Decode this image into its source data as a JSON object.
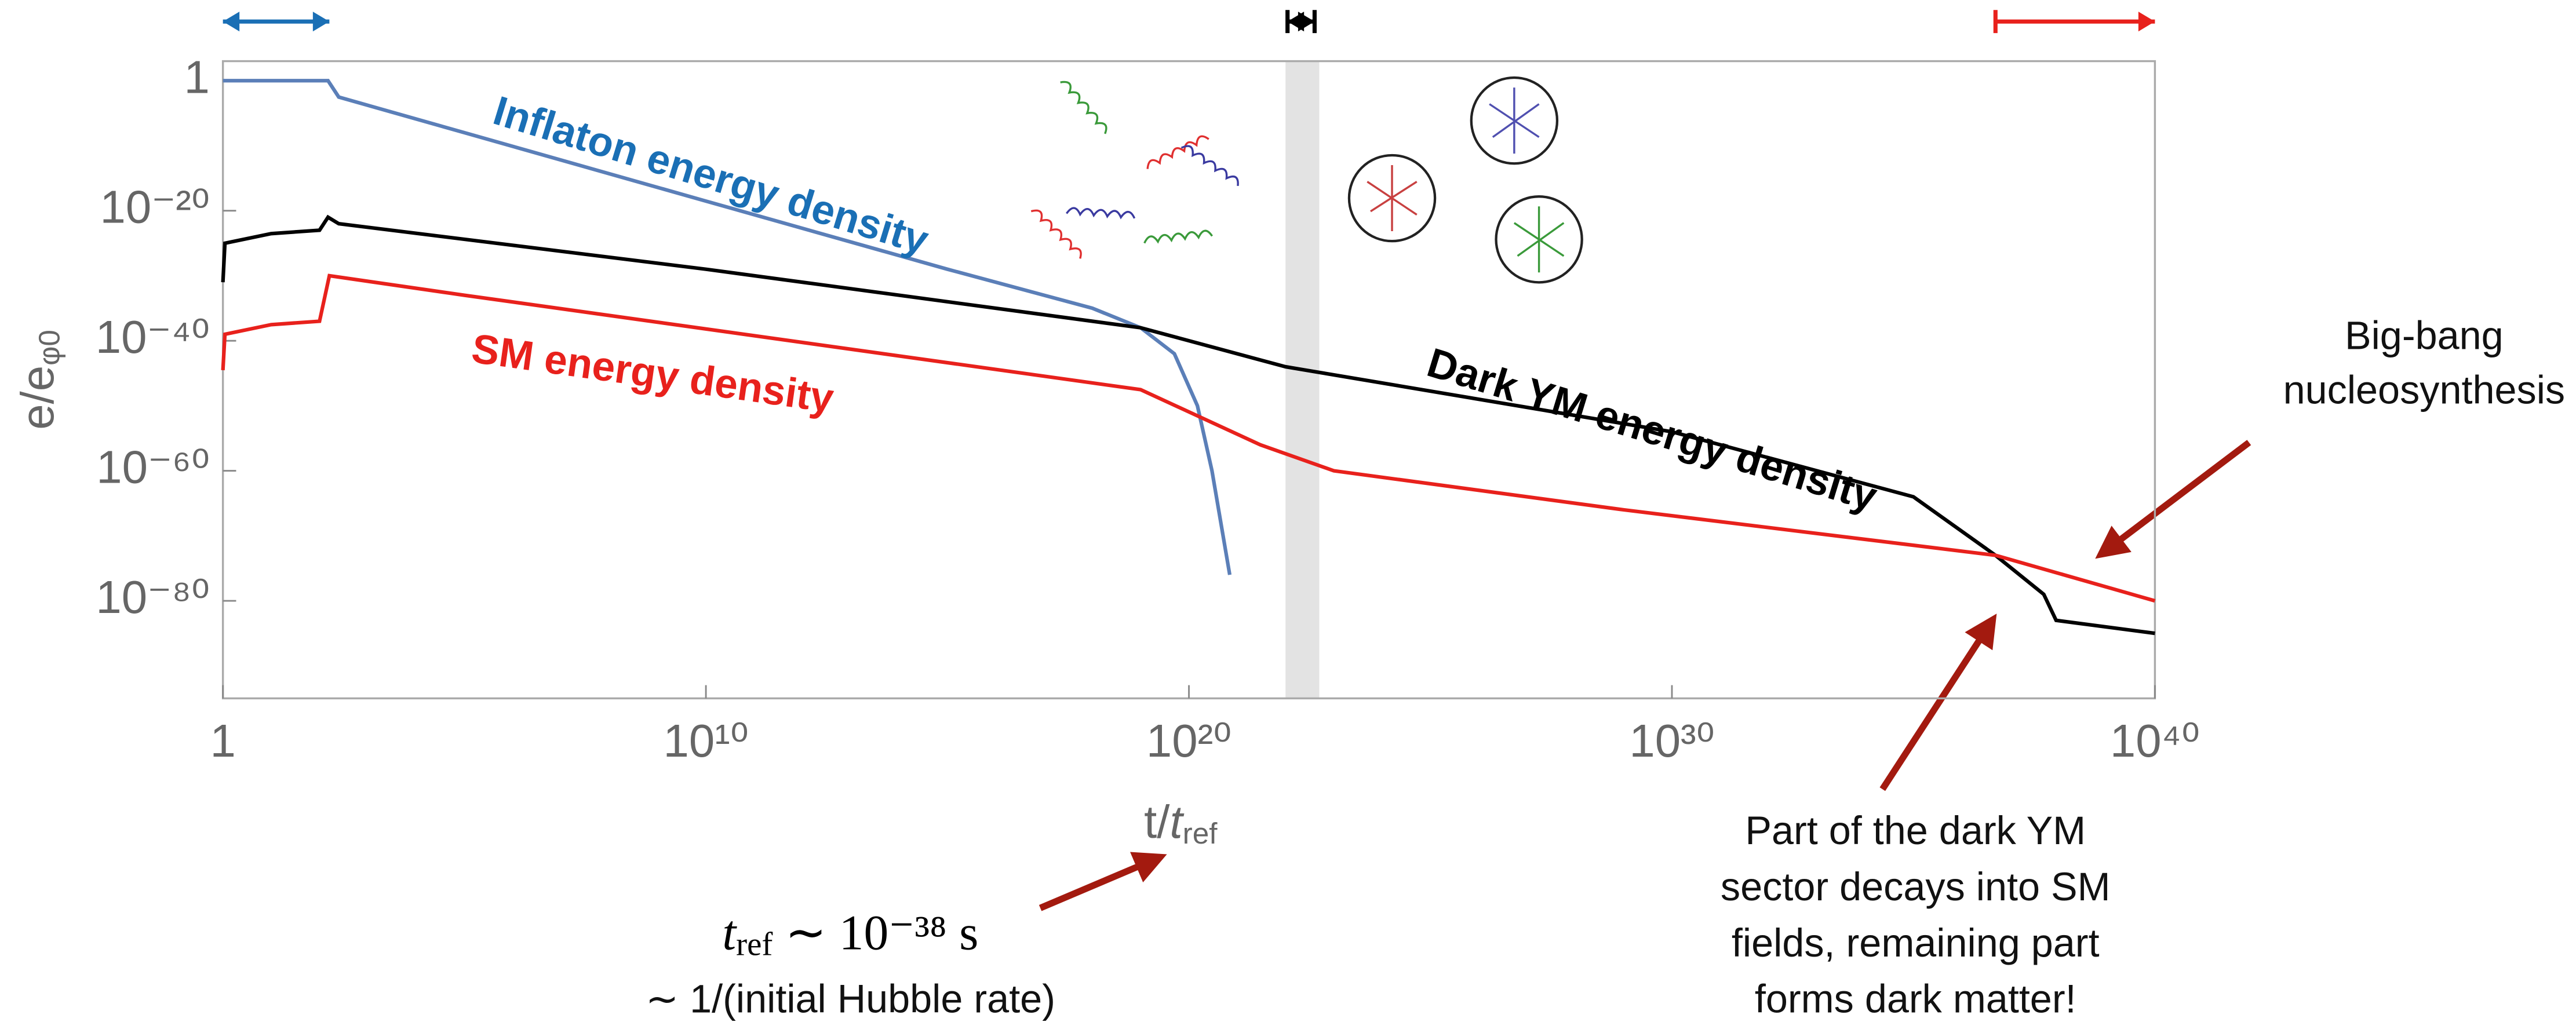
{
  "chart_data": {
    "type": "line",
    "xscale": "log",
    "yscale": "log",
    "xlim": [
      1,
      1e+40
    ],
    "xticks": [
      1,
      {
        "value": 10000000000.0,
        "label": "10¹⁰"
      },
      {
        "value": 1e+20,
        "label": "10²⁰"
      },
      {
        "value": 1e+30,
        "label": "10³⁰"
      },
      {
        "value": 1e+40,
        "label": "10⁴⁰"
      }
    ],
    "ylim": [
      1e-95,
      1000.0
    ],
    "yticks": [
      {
        "value": 1e-80,
        "label": "10⁻⁸⁰"
      },
      {
        "value": 1e-60,
        "label": "10⁻⁶⁰"
      },
      {
        "value": 1e-40,
        "label": "10⁻⁴⁰"
      },
      {
        "value": 1e-20,
        "label": "10⁻²⁰"
      },
      1
    ],
    "xlabel": {
      "main": "t/",
      "var": "t",
      "sub": "ref"
    },
    "ylabel": {
      "main": "e/e",
      "sub": "φ0"
    },
    "series": [
      {
        "name": "Inflaton energy density",
        "color": "#5b7fb8",
        "label_color": "#1a6fb5",
        "x": [
          1,
          100,
          150,
          250,
          100000.0,
          10000000000.0,
          1000000000000000.0,
          1e+18,
          1e+19,
          5e+19,
          1.5e+20,
          3e+20,
          7e+20
        ],
        "values": [
          1,
          1,
          1,
          0.003,
          1e-08,
          3e-19,
          1e-29,
          1e-35,
          1e-38,
          1e-42,
          1e-50,
          1e-60,
          1e-76
        ]
      },
      {
        "name": "Dark YM energy density",
        "color": "#000000",
        "label_color": "#000000",
        "x": [
          1,
          1.1,
          10,
          100,
          150,
          250,
          10000000000.0,
          1e+19,
          1e+22,
          1e+30,
          1e+35,
          5e+36,
          5e+37,
          9e+37,
          1e+40
        ],
        "values": [
          1e-31,
          1e-25,
          3e-24,
          1e-23,
          1e-21,
          1e-22,
          1e-29,
          1e-38,
          1e-44,
          1e-54,
          1e-64,
          1e-73,
          1e-79,
          1e-83,
          1e-85
        ]
      },
      {
        "name": "SM energy density",
        "color": "#e8211c",
        "label_color": "#e8211c",
        "x": [
          1,
          1.1,
          10,
          100,
          160,
          100000.0,
          1e+19,
          3e+21,
          1e+23,
          1e+29,
          5e+36,
          1e+40
        ],
        "values": [
          3e-45,
          1e-39,
          3e-38,
          1e-37,
          1e-30,
          1e-33,
          3e-48,
          1e-56,
          1e-60,
          1e-66,
          1e-73,
          1e-80
        ]
      }
    ],
    "highlight_band": {
      "xrange": [
        1e+22,
        5e+22
      ],
      "color": "#e3e3e3"
    },
    "top_markers": [
      {
        "xrange": [
          1,
          160
        ],
        "color": "#1a6fb5",
        "style": "double"
      },
      {
        "xrange": [
          1.1e+22,
          4e+22
        ],
        "color": "#000000",
        "style": "bar"
      },
      {
        "xrange": [
          5e+36,
          1e+40
        ],
        "color": "#e8211c",
        "style": "single"
      }
    ],
    "bbn_note": [
      "Big-bang",
      "nucleosynthesis"
    ],
    "decay_note": [
      "Part of the dark YM",
      "sector decays into SM",
      "fields, remaining part",
      "forms dark matter!"
    ],
    "tref_note": {
      "var": "t",
      "sub": "ref",
      "rest": " ∼ 10⁻³⁸ s"
    },
    "tref_explanation": "∼ 1/(initial Hubble rate)"
  }
}
